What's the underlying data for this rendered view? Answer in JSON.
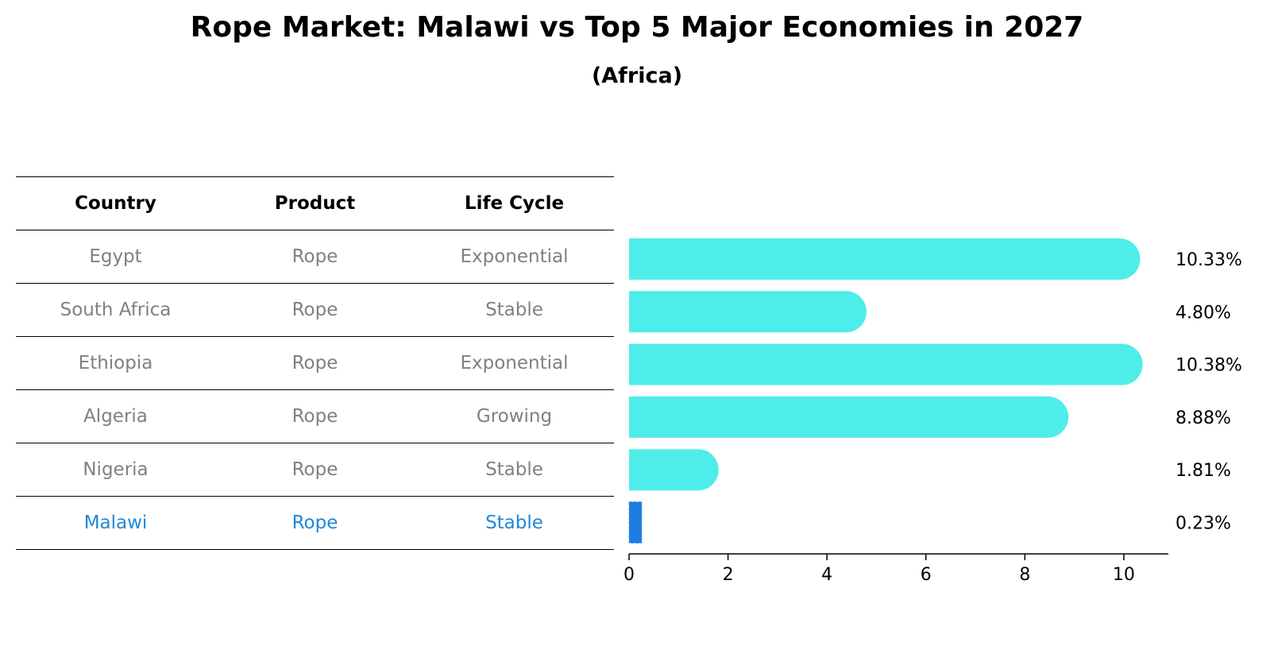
{
  "title": "Rope Market: Malawi vs Top 5 Major Economies in 2027",
  "subtitle": "(Africa)",
  "table": {
    "headers": [
      "Country",
      "Product",
      "Life Cycle"
    ],
    "rows": [
      {
        "country": "Egypt",
        "product": "Rope",
        "life_cycle": "Exponential",
        "highlight": false
      },
      {
        "country": "South Africa",
        "product": "Rope",
        "life_cycle": "Stable",
        "highlight": false
      },
      {
        "country": "Ethiopia",
        "product": "Rope",
        "life_cycle": "Exponential",
        "highlight": false
      },
      {
        "country": "Algeria",
        "product": "Rope",
        "life_cycle": "Growing",
        "highlight": false
      },
      {
        "country": "Nigeria",
        "product": "Rope",
        "life_cycle": "Stable",
        "highlight": false
      },
      {
        "country": "Malawi",
        "product": "Rope",
        "life_cycle": "Stable",
        "highlight": true
      }
    ]
  },
  "colors": {
    "bar": "#4eedea",
    "highlight_bar": "#1e7be0",
    "highlight_text": "#1e88d6",
    "muted_text": "#808080"
  },
  "chart_data": {
    "type": "bar",
    "orientation": "horizontal",
    "categories": [
      "Egypt",
      "South Africa",
      "Ethiopia",
      "Algeria",
      "Nigeria",
      "Malawi"
    ],
    "values": [
      10.33,
      4.8,
      10.38,
      8.88,
      1.81,
      0.23
    ],
    "value_labels": [
      "10.33%",
      "4.80%",
      "10.38%",
      "8.88%",
      "1.81%",
      "0.23%"
    ],
    "xlim": [
      0,
      10.9
    ],
    "xticks": [
      0,
      2,
      4,
      6,
      8,
      10
    ],
    "highlight_index": 5,
    "grid": false
  }
}
